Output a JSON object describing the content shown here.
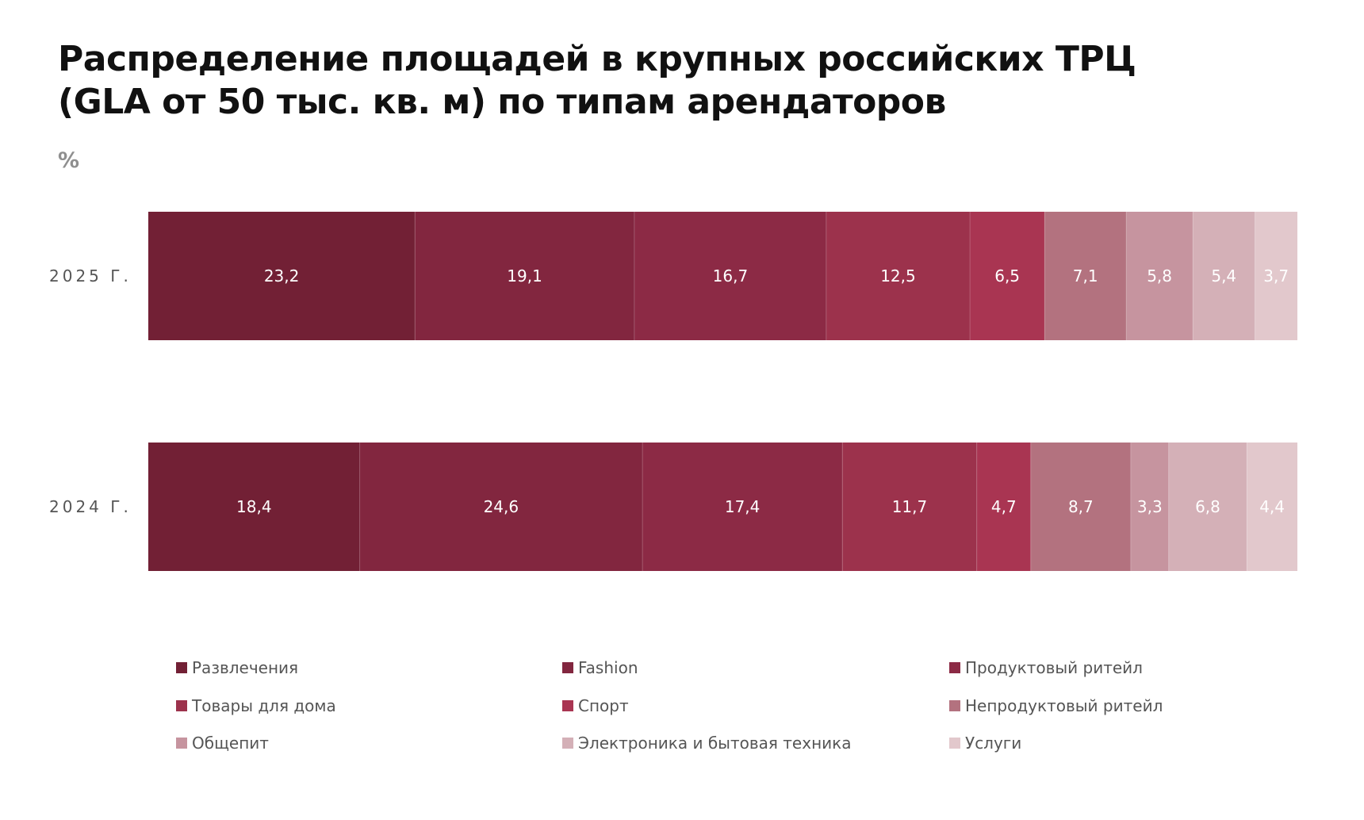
{
  "title_line1": "Распределение площадей в крупных российских ТРЦ",
  "title_line2": "(GLA от 50 тыс. кв. м) по типам арендаторов",
  "unit_label": "%",
  "chart_data": {
    "type": "bar",
    "orientation": "horizontal",
    "stacked": true,
    "categories": [
      "2025 г.",
      "2024 г."
    ],
    "series": [
      {
        "name": "Развлечения",
        "color": "#722035",
        "values": [
          23.2,
          18.4
        ]
      },
      {
        "name": "Fashion",
        "color": "#82263f",
        "values": [
          19.1,
          24.6
        ]
      },
      {
        "name": "Продуктовый ритейл",
        "color": "#8c2a45",
        "values": [
          16.7,
          17.4
        ]
      },
      {
        "name": "Товары для дома",
        "color": "#9c324c",
        "values": [
          12.5,
          11.7
        ]
      },
      {
        "name": "Спорт",
        "color": "#a93552",
        "values": [
          6.5,
          4.7
        ]
      },
      {
        "name": "Непродуктовый ритейл",
        "color": "#b3727f",
        "values": [
          7.1,
          8.7
        ]
      },
      {
        "name": "Общепит",
        "color": "#c6949f",
        "values": [
          5.8,
          3.3
        ]
      },
      {
        "name": "Электроника и бытовая техника",
        "color": "#d4b0b7",
        "values": [
          5.4,
          6.8
        ]
      },
      {
        "name": "Услуги",
        "color": "#e2c8cc",
        "values": [
          3.7,
          4.4
        ]
      }
    ],
    "data_labels": [
      [
        "23,2",
        "19,1",
        "16,7",
        "12,5",
        "6,5",
        "7,1",
        "5,8",
        "5,4",
        "3,7"
      ],
      [
        "18,4",
        "24,6",
        "17,4",
        "11,7",
        "4,7",
        "8,7",
        "3,3",
        "6,8",
        "4,4"
      ]
    ],
    "legend_position": "bottom",
    "grid": false
  }
}
